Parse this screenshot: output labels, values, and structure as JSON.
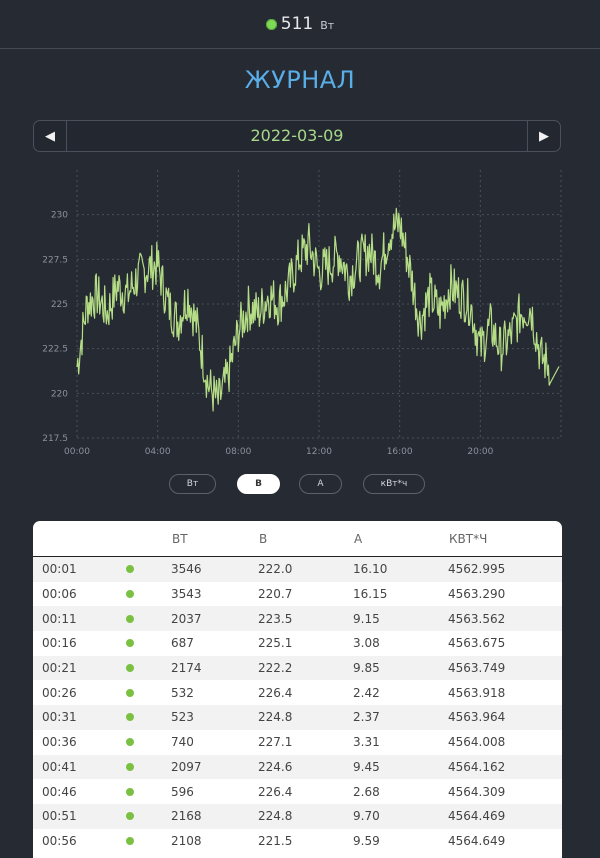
{
  "header": {
    "power_value": "511",
    "power_unit": "Вт",
    "status_color": "#7ed957"
  },
  "title": "ЖУРНАЛ",
  "date_nav": {
    "prev_icon": "left-arrow-icon",
    "next_icon": "right-arrow-icon",
    "date": "2022-03-09"
  },
  "chart_data": {
    "type": "line",
    "title": "",
    "xlabel": "",
    "ylabel": "",
    "x_ticks": [
      "00:00",
      "04:00",
      "08:00",
      "12:00",
      "16:00",
      "20:00"
    ],
    "y_ticks": [
      "217.5",
      "220",
      "222.5",
      "225",
      "227.5",
      "230"
    ],
    "ylim": [
      217.5,
      232.5
    ],
    "grid": true,
    "line_color": "#b5dd86",
    "series": [
      {
        "x_hours": [
          0.0,
          0.5,
          1.0,
          1.5,
          2.0,
          2.5,
          3.0,
          3.5,
          4.0,
          4.5,
          5.0,
          5.5,
          6.0,
          6.5,
          7.0,
          7.5,
          8.0,
          8.5,
          9.0,
          9.5,
          10.0,
          10.5,
          11.0,
          11.5,
          12.0,
          12.5,
          13.0,
          13.5,
          14.0,
          14.5,
          15.0,
          15.5,
          16.0,
          16.5,
          17.0,
          17.5,
          18.0,
          18.5,
          19.0,
          19.5,
          20.0,
          20.5,
          21.0,
          21.5,
          22.0,
          22.5,
          23.0,
          23.5
        ],
        "values": [
          221.5,
          225.0,
          225.5,
          224.5,
          226.0,
          225.5,
          226.5,
          227.0,
          227.2,
          225.0,
          224.0,
          225.5,
          223.5,
          220.5,
          219.5,
          221.0,
          223.5,
          224.8,
          224.5,
          225.5,
          225.0,
          226.0,
          227.5,
          228.3,
          226.8,
          227.2,
          227.8,
          226.5,
          227.5,
          228.0,
          227.0,
          229.0,
          229.5,
          227.0,
          224.0,
          225.5,
          224.5,
          226.0,
          225.5,
          225.0,
          222.5,
          223.8,
          222.5,
          223.2,
          224.5,
          224.8,
          222.0,
          221.5
        ]
      }
    ]
  },
  "toggles": [
    {
      "label": "Вт",
      "active": false
    },
    {
      "label": "В",
      "active": true
    },
    {
      "label": "А",
      "active": false
    },
    {
      "label": "кВт*ч",
      "active": false
    }
  ],
  "table": {
    "headers": [
      "",
      "",
      "ВТ",
      "В",
      "А",
      "КВТ*Ч"
    ],
    "rows": [
      [
        "00:01",
        "3546",
        "222.0",
        "16.10",
        "4562.995"
      ],
      [
        "00:06",
        "3543",
        "220.7",
        "16.15",
        "4563.290"
      ],
      [
        "00:11",
        "2037",
        "223.5",
        "9.15",
        "4563.562"
      ],
      [
        "00:16",
        "687",
        "225.1",
        "3.08",
        "4563.675"
      ],
      [
        "00:21",
        "2174",
        "222.2",
        "9.85",
        "4563.749"
      ],
      [
        "00:26",
        "532",
        "226.4",
        "2.42",
        "4563.918"
      ],
      [
        "00:31",
        "523",
        "224.8",
        "2.37",
        "4563.964"
      ],
      [
        "00:36",
        "740",
        "227.1",
        "3.31",
        "4564.008"
      ],
      [
        "00:41",
        "2097",
        "224.6",
        "9.45",
        "4564.162"
      ],
      [
        "00:46",
        "596",
        "226.4",
        "2.68",
        "4564.309"
      ],
      [
        "00:51",
        "2168",
        "224.8",
        "9.70",
        "4564.469"
      ],
      [
        "00:56",
        "2108",
        "221.5",
        "9.59",
        "4564.649"
      ]
    ]
  }
}
